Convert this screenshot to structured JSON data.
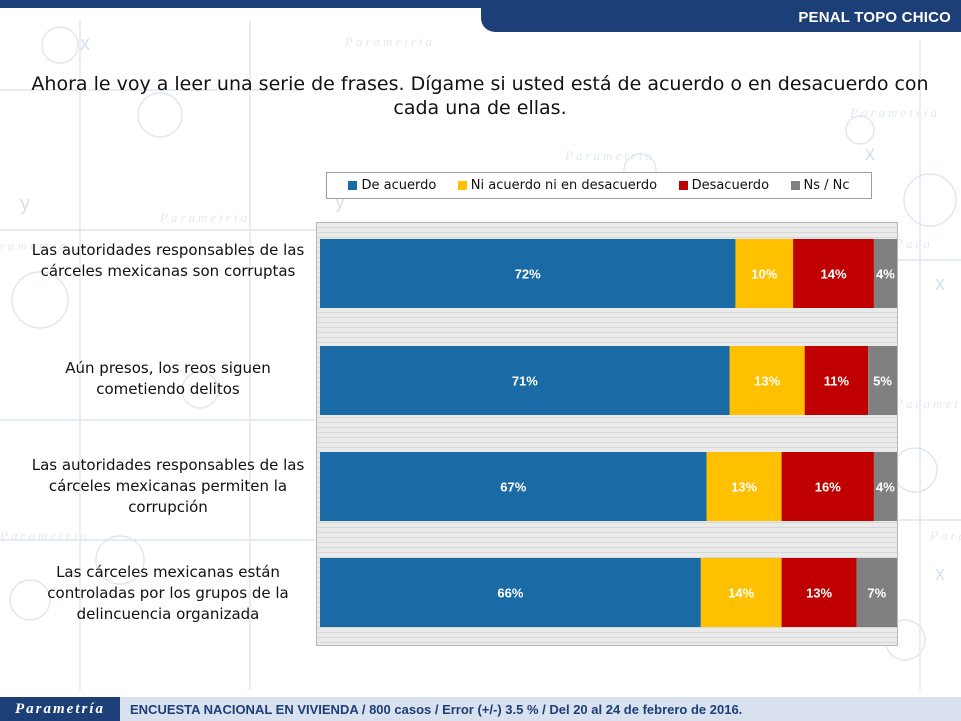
{
  "header": {
    "title": "PENAL TOPO CHICO"
  },
  "question": "Ahora le voy a leer una serie de frases. Dígame si usted está de acuerdo o en desacuerdo con cada una de ellas.",
  "legend": [
    {
      "label": "De acuerdo",
      "color": "#1a6aa6"
    },
    {
      "label": "Ni acuerdo ni en desacuerdo",
      "color": "#ffc000"
    },
    {
      "label": "Desacuerdo",
      "color": "#c00000"
    },
    {
      "label": "Ns / Nc",
      "color": "#808080"
    }
  ],
  "chart_data": {
    "type": "bar",
    "orientation": "horizontal",
    "stacked": true,
    "xlim": [
      0,
      100
    ],
    "categories": [
      "Las autoridades responsables de las cárceles mexicanas son corruptas",
      "Aún presos, los reos siguen cometiendo delitos",
      "Las autoridades responsables de las cárceles mexicanas permiten la corrupción",
      "Las cárceles mexicanas están controladas por los grupos de la delincuencia organizada"
    ],
    "series": [
      {
        "name": "De acuerdo",
        "color": "#1a6aa6",
        "values": [
          72,
          71,
          67,
          66
        ]
      },
      {
        "name": "Ni acuerdo ni en desacuerdo",
        "color": "#ffc000",
        "values": [
          10,
          13,
          13,
          14
        ]
      },
      {
        "name": "Desacuerdo",
        "color": "#c00000",
        "values": [
          14,
          11,
          16,
          13
        ]
      },
      {
        "name": "Ns / Nc",
        "color": "#808080",
        "values": [
          4,
          5,
          4,
          7
        ]
      }
    ],
    "value_suffix": "%"
  },
  "footer": {
    "logo": "Parametría",
    "text": "ENCUESTA NACIONAL EN VIVIENDA / 800 casos / Error (+/-) 3.5 % / Del 20 al 24 de febrero de 2016."
  }
}
